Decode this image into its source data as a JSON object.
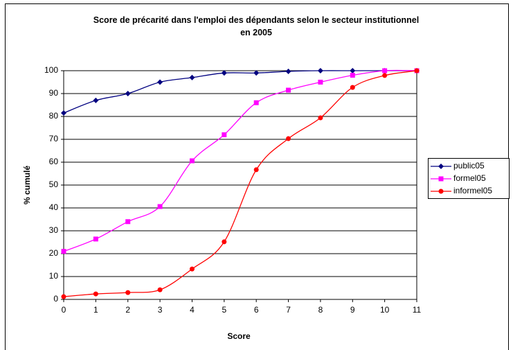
{
  "chart_data": {
    "type": "line",
    "title": "Score de précarité dans l'emploi des dépendants selon le secteur institutionnel en 2005",
    "x_label": "Score",
    "y_label": "% cumulé",
    "x": [
      0,
      1,
      2,
      3,
      4,
      5,
      6,
      7,
      8,
      9,
      10,
      11
    ],
    "series": [
      {
        "name": "public05",
        "color": "#000080",
        "marker": "diamond",
        "values": [
          81.5,
          87,
          90,
          95,
          97,
          99,
          99,
          99.7,
          100,
          100,
          100,
          100
        ]
      },
      {
        "name": "formel05",
        "color": "#ff00ff",
        "marker": "square",
        "values": [
          21,
          26.4,
          34,
          40.6,
          60.6,
          72,
          86,
          91.5,
          95,
          98,
          100,
          100
        ]
      },
      {
        "name": "informel05",
        "color": "#ff0000",
        "marker": "circle",
        "values": [
          1.2,
          2.4,
          3,
          4.2,
          13.3,
          25.2,
          56.7,
          70.3,
          79.4,
          92.7,
          97.9,
          100
        ]
      }
    ],
    "xlim": [
      0,
      11
    ],
    "xticks": [
      0,
      1,
      2,
      3,
      4,
      5,
      6,
      7,
      8,
      9,
      10,
      11
    ],
    "ylim": [
      0,
      100
    ],
    "yticks": [
      0,
      10,
      20,
      30,
      40,
      50,
      60,
      70,
      80,
      90,
      100
    ],
    "grid": true,
    "legend": "right",
    "smooth": true
  }
}
